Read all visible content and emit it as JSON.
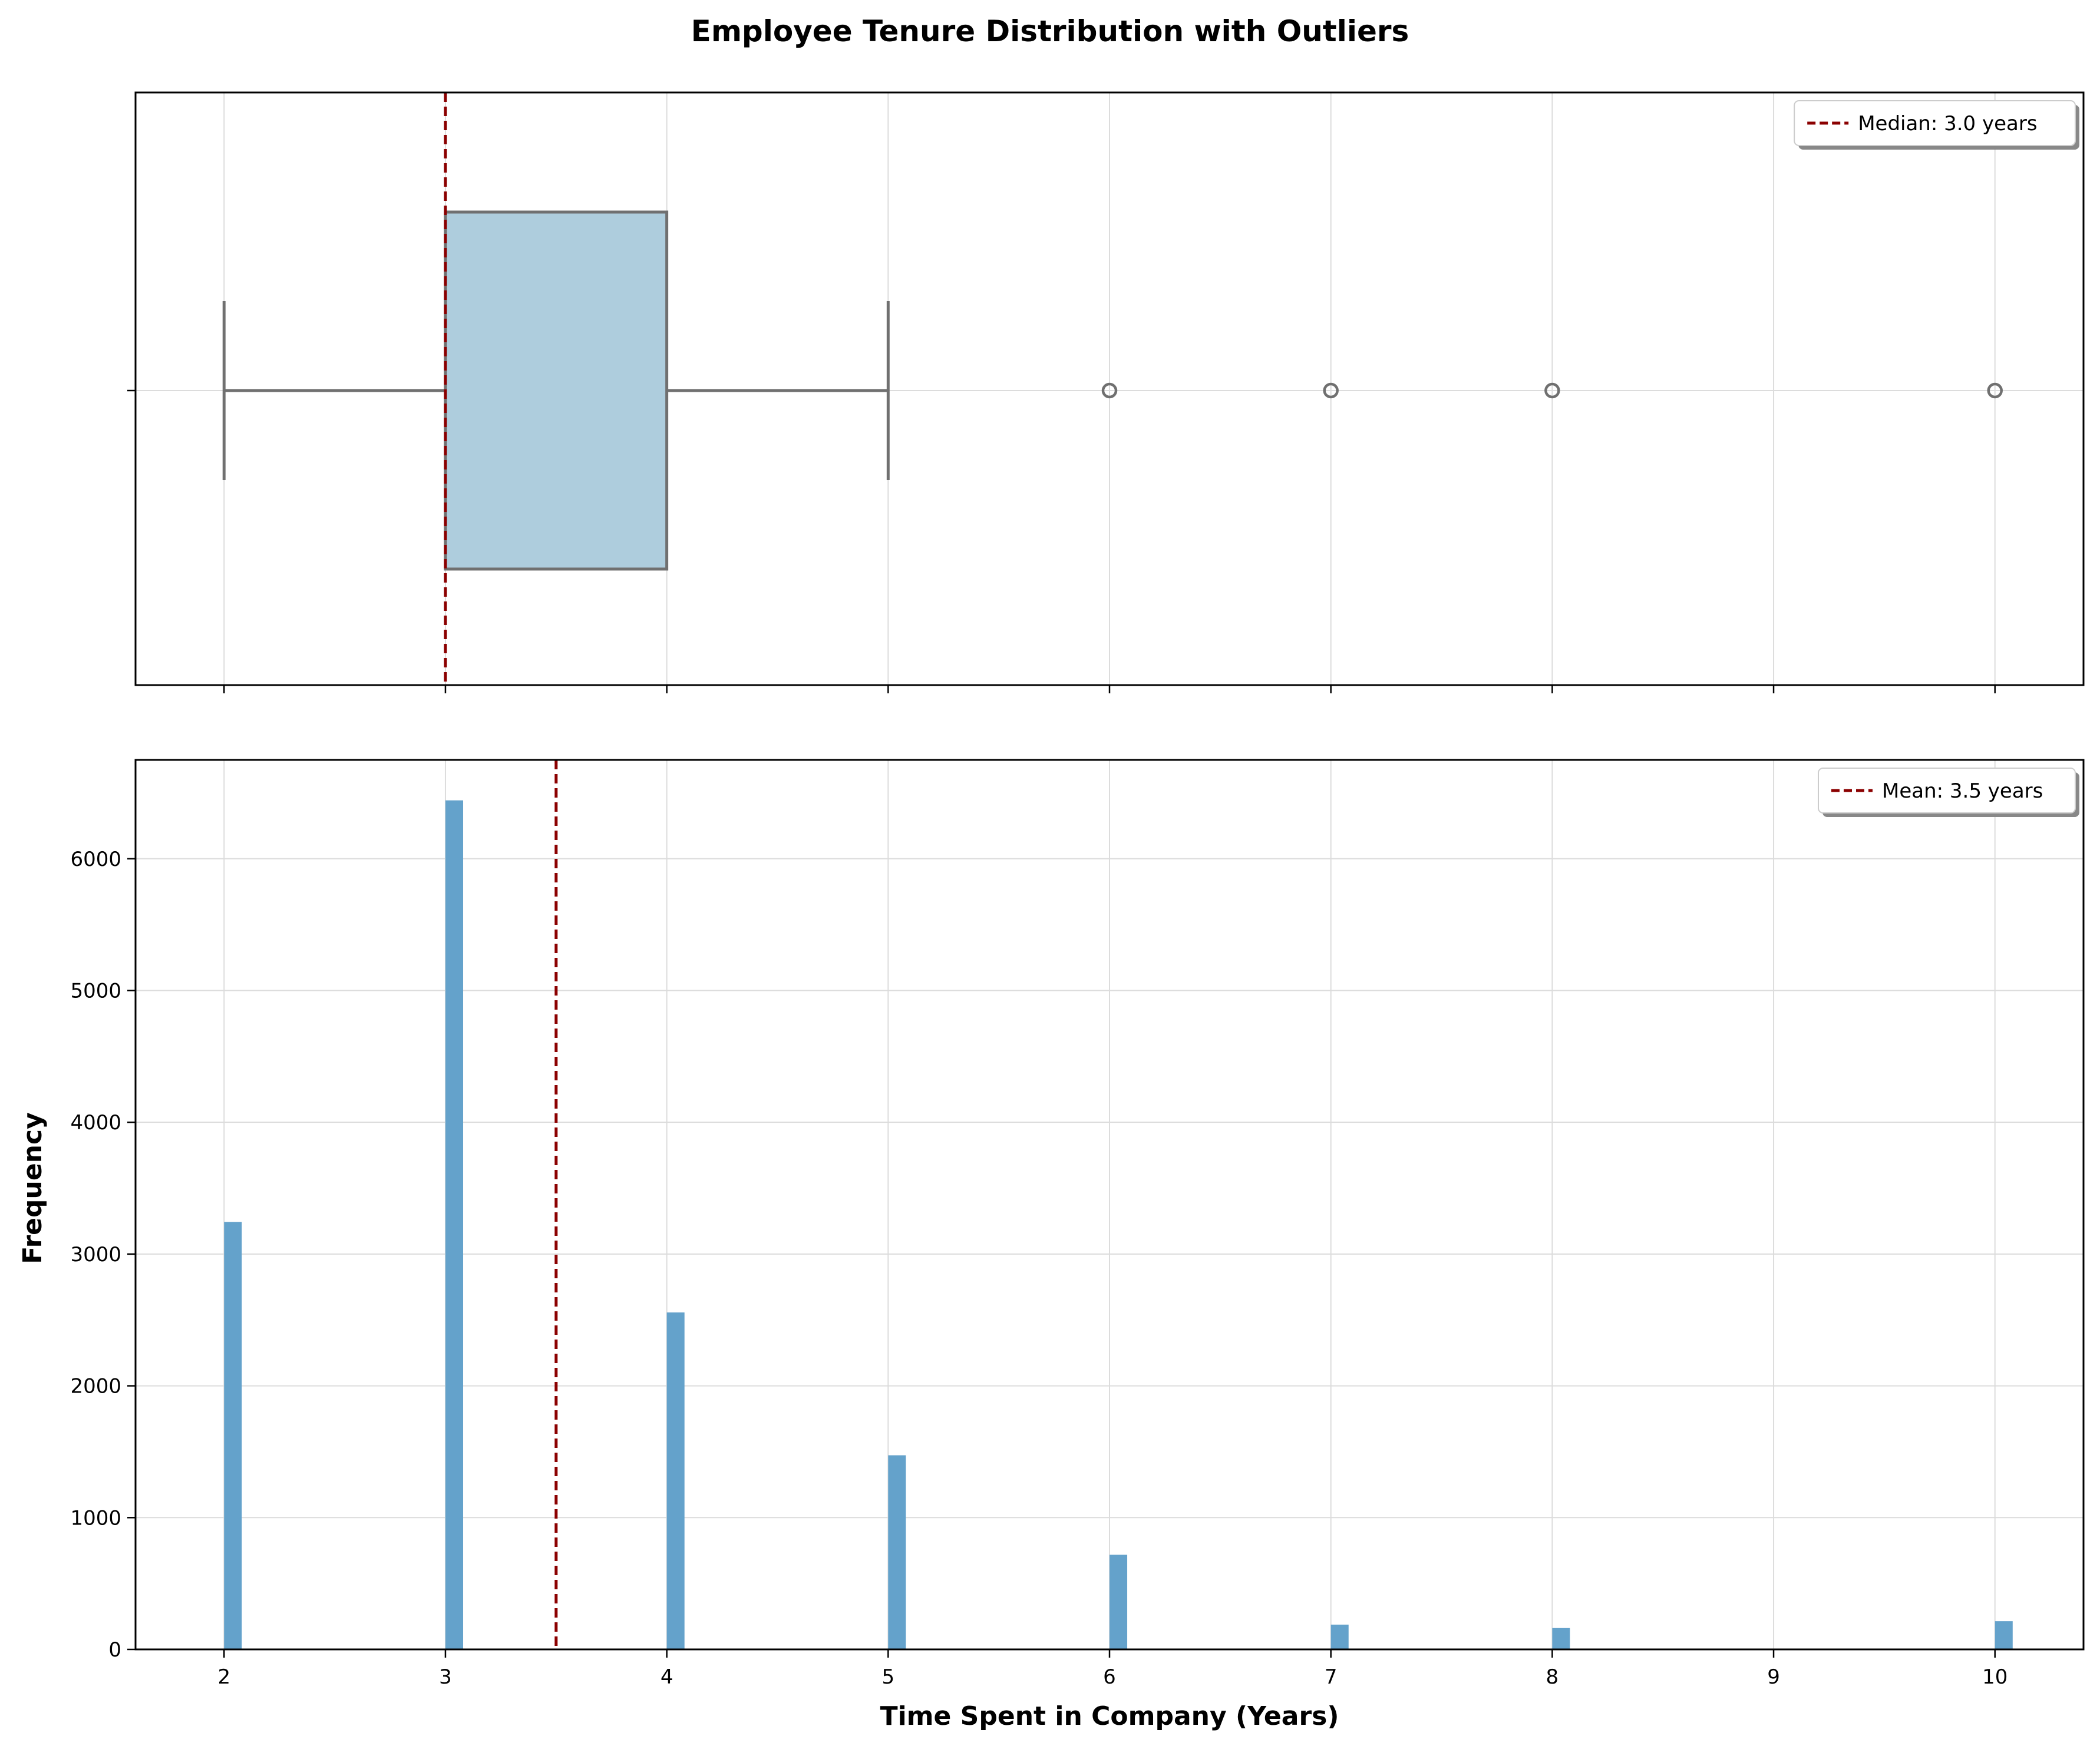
{
  "chart_data": {
    "title": "Employee Tenure Distribution with Outliers",
    "colors": {
      "box_fill": "#aecddd",
      "box_edge": "#707070",
      "bar_fill": "#64a2cb",
      "ref_line": "#8b0000",
      "grid": "#dcdcdc"
    },
    "panels": [
      {
        "type": "box",
        "orientation": "horizontal",
        "xlim": [
          1.6,
          10.4
        ],
        "xticks": [
          2,
          3,
          4,
          5,
          6,
          7,
          8,
          9,
          10
        ],
        "show_x_tick_labels": false,
        "grid": true,
        "whisker_low": 2,
        "q1": 3,
        "median": 3,
        "q3": 4,
        "whisker_high": 5,
        "outliers": [
          6,
          7,
          8,
          10
        ],
        "ref_line": {
          "x": 3.0,
          "label": "Median: 3.0 years"
        },
        "legend_position": "upper-right"
      },
      {
        "type": "bar",
        "xlim": [
          1.6,
          10.4
        ],
        "ylim": [
          0,
          6750
        ],
        "xticks": [
          2,
          3,
          4,
          5,
          6,
          7,
          8,
          9,
          10
        ],
        "yticks": [
          0,
          1000,
          2000,
          3000,
          4000,
          5000,
          6000
        ],
        "grid": true,
        "ylabel": "Frequency",
        "xlabel": "Time Spent in Company (Years)",
        "bin_width": 0.08,
        "bins": [
          {
            "x": 2,
            "value": 3244
          },
          {
            "x": 3,
            "value": 6443
          },
          {
            "x": 4,
            "value": 2557
          },
          {
            "x": 5,
            "value": 1473
          },
          {
            "x": 6,
            "value": 718
          },
          {
            "x": 7,
            "value": 188
          },
          {
            "x": 8,
            "value": 162
          },
          {
            "x": 10,
            "value": 214
          }
        ],
        "ref_line": {
          "x": 3.5,
          "label": "Mean: 3.5 years"
        },
        "legend_position": "upper-right"
      }
    ]
  }
}
